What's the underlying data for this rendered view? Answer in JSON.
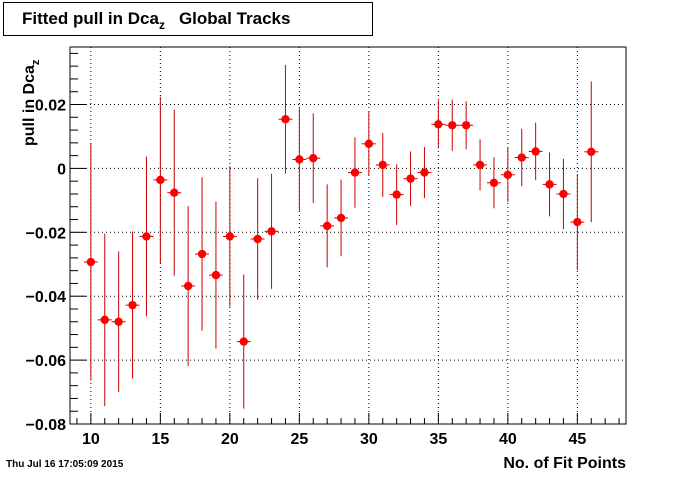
{
  "chart_data": {
    "type": "scatter",
    "title": "Fitted pull in Dca",
    "title_subscript": "z",
    "title_suffix": "Global Tracks",
    "xlabel": "No. of Fit Points",
    "ylabel": "pull in Dca",
    "ylabel_subscript": "z",
    "timestamp": "Thu Jul 16 17:05:09 2015",
    "xlim": [
      8.5,
      48.5
    ],
    "ylim": [
      -0.08,
      0.038
    ],
    "x_ticks": [
      10,
      15,
      20,
      25,
      30,
      35,
      40,
      45
    ],
    "y_ticks": [
      -0.08,
      -0.06,
      -0.04,
      -0.02,
      0,
      0.02
    ],
    "x_tick_labels": [
      "10",
      "15",
      "20",
      "25",
      "30",
      "35",
      "40",
      "45"
    ],
    "y_tick_labels": [
      "−0.08",
      "−0.06",
      "−0.04",
      "−0.02",
      "0",
      "0.02"
    ],
    "grid": true,
    "marker_color": "#ff0000",
    "errorbar_color": "#cc0000",
    "series": [
      {
        "x": [
          10,
          11,
          12,
          13,
          14,
          15,
          16,
          17,
          18,
          19,
          20,
          21,
          22,
          23,
          24,
          25,
          26,
          27,
          28,
          29,
          30,
          31,
          32,
          33,
          34,
          35,
          36,
          37,
          38,
          39,
          40,
          41,
          42,
          43,
          44,
          45,
          46
        ],
        "y": [
          -0.0293,
          -0.0474,
          -0.048,
          -0.0428,
          -0.0213,
          -0.0036,
          -0.0076,
          -0.0368,
          -0.0268,
          -0.0334,
          -0.0213,
          -0.0542,
          -0.0221,
          -0.0197,
          0.0154,
          0.0028,
          0.0032,
          -0.018,
          -0.0155,
          -0.0013,
          0.0077,
          0.0011,
          -0.0082,
          -0.0032,
          -0.0013,
          0.0138,
          0.0135,
          0.0135,
          0.0011,
          -0.0045,
          -0.002,
          0.0034,
          0.0053,
          -0.005,
          -0.008,
          -0.0168,
          0.0052
        ],
        "yerr": [
          0.037,
          0.027,
          0.022,
          0.023,
          0.025,
          0.026,
          0.026,
          0.025,
          0.024,
          0.023,
          0.022,
          0.021,
          0.019,
          0.018,
          0.017,
          0.016,
          0.014,
          0.013,
          0.012,
          0.011,
          0.01,
          0.01,
          0.0095,
          0.0085,
          0.008,
          0.0075,
          0.008,
          0.0075,
          0.008,
          0.008,
          0.0085,
          0.009,
          0.009,
          0.01,
          0.011,
          0.015,
          0.022
        ]
      }
    ]
  }
}
